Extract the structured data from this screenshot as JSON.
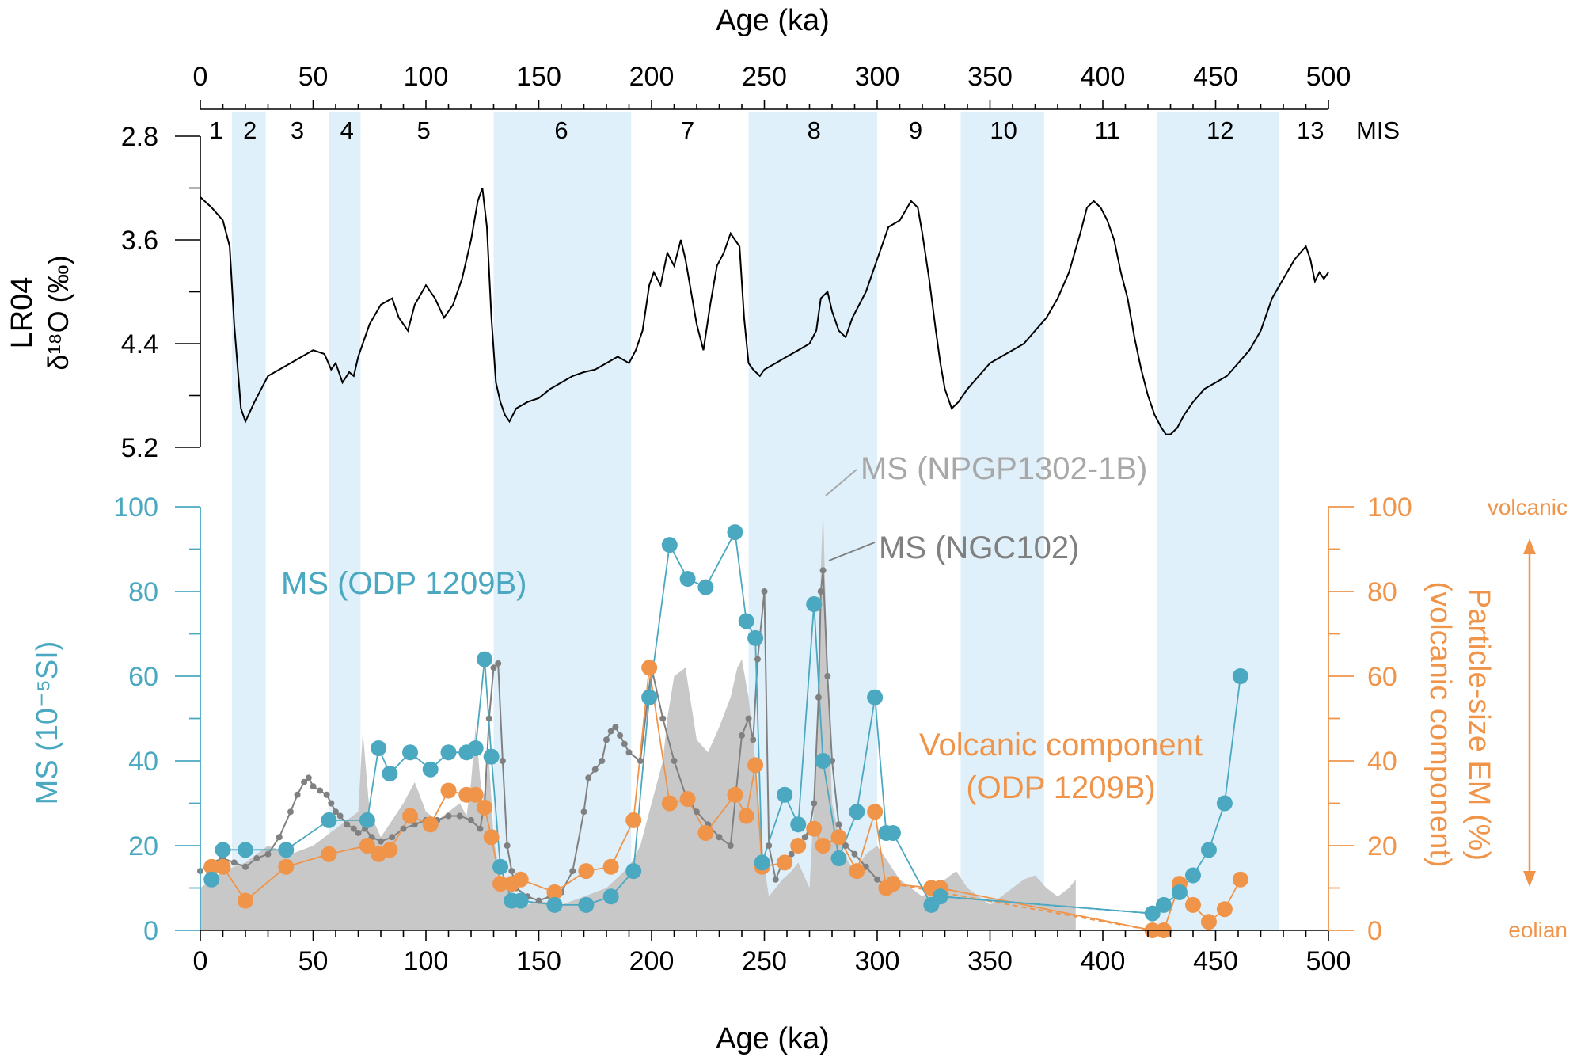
{
  "chart_data": {
    "type": "line",
    "x_label_top": "Age (ka)",
    "x_label_bottom": "Age (ka)",
    "xlim": [
      0,
      500
    ],
    "x_ticks": [
      0,
      50,
      100,
      150,
      200,
      250,
      300,
      350,
      400,
      450,
      500
    ],
    "mis": {
      "label": "MIS",
      "stages": [
        "1",
        "2",
        "3",
        "4",
        "5",
        "6",
        "7",
        "8",
        "9",
        "10",
        "11",
        "12",
        "13"
      ],
      "stage_centers": [
        7,
        22,
        43,
        65,
        99,
        160,
        216,
        272,
        317,
        356,
        402,
        452,
        492
      ],
      "shaded_intervals": [
        [
          14,
          29
        ],
        [
          57,
          71
        ],
        [
          130,
          191
        ],
        [
          243,
          300
        ],
        [
          337,
          374
        ],
        [
          424,
          478
        ]
      ]
    },
    "top_panel": {
      "ylabel_line1": "LR04",
      "ylabel_line2": "δ¹⁸O (‰)",
      "ylim": [
        2.8,
        5.2
      ],
      "y_ticks": [
        "2.8",
        "3.6",
        "4.4",
        "5.2"
      ],
      "series": [
        {
          "name": "LR04 δ18O",
          "color": "#000000",
          "x": [
            0,
            5,
            10,
            13,
            15,
            18,
            20,
            24,
            27,
            30,
            35,
            40,
            45,
            50,
            55,
            58,
            60,
            63,
            66,
            68,
            70,
            72,
            75,
            80,
            85,
            88,
            92,
            95,
            100,
            104,
            108,
            112,
            116,
            120,
            123,
            125,
            127,
            129,
            131,
            133,
            135,
            137,
            140,
            145,
            150,
            155,
            160,
            165,
            170,
            175,
            180,
            185,
            190,
            193,
            196,
            199,
            201,
            204,
            207,
            210,
            213,
            215,
            217,
            220,
            223,
            226,
            229,
            232,
            235,
            237,
            239,
            241,
            243,
            245,
            248,
            250,
            255,
            260,
            265,
            270,
            273,
            275,
            278,
            280,
            283,
            286,
            289,
            292,
            295,
            300,
            305,
            310,
            315,
            318,
            320,
            323,
            326,
            328,
            330,
            333,
            336,
            340,
            345,
            350,
            355,
            360,
            365,
            370,
            375,
            380,
            385,
            390,
            393,
            396,
            399,
            402,
            405,
            408,
            411,
            414,
            417,
            420,
            423,
            426,
            428,
            430,
            433,
            436,
            440,
            445,
            450,
            455,
            460,
            465,
            470,
            475,
            480,
            485,
            490,
            492,
            494,
            496,
            498,
            500
          ],
          "y": [
            3.27,
            3.35,
            3.45,
            3.65,
            4.25,
            4.9,
            5.0,
            4.85,
            4.75,
            4.65,
            4.6,
            4.55,
            4.5,
            4.45,
            4.48,
            4.6,
            4.55,
            4.7,
            4.62,
            4.65,
            4.5,
            4.4,
            4.25,
            4.1,
            4.05,
            4.2,
            4.3,
            4.1,
            3.95,
            4.05,
            4.2,
            4.1,
            3.9,
            3.6,
            3.3,
            3.2,
            3.5,
            4.2,
            4.7,
            4.85,
            4.95,
            5.0,
            4.9,
            4.85,
            4.82,
            4.75,
            4.7,
            4.65,
            4.62,
            4.6,
            4.55,
            4.5,
            4.55,
            4.45,
            4.3,
            3.95,
            3.85,
            3.95,
            3.7,
            3.8,
            3.6,
            3.75,
            3.95,
            4.25,
            4.45,
            4.1,
            3.8,
            3.7,
            3.55,
            3.6,
            3.65,
            4.2,
            4.55,
            4.6,
            4.65,
            4.6,
            4.55,
            4.5,
            4.45,
            4.4,
            4.3,
            4.05,
            4.0,
            4.15,
            4.3,
            4.35,
            4.2,
            4.1,
            4.0,
            3.75,
            3.5,
            3.45,
            3.3,
            3.35,
            3.55,
            3.9,
            4.3,
            4.55,
            4.75,
            4.9,
            4.85,
            4.75,
            4.65,
            4.55,
            4.5,
            4.45,
            4.4,
            4.3,
            4.2,
            4.05,
            3.85,
            3.55,
            3.35,
            3.3,
            3.35,
            3.45,
            3.6,
            3.85,
            4.05,
            4.35,
            4.6,
            4.8,
            4.95,
            5.05,
            5.1,
            5.1,
            5.05,
            4.95,
            4.85,
            4.75,
            4.7,
            4.65,
            4.55,
            4.45,
            4.3,
            4.05,
            3.9,
            3.75,
            3.65,
            3.75,
            3.92,
            3.85,
            3.9,
            3.85
          ]
        }
      ]
    },
    "bottom_panel": {
      "ylabel_left": "MS (10⁻⁵SI)",
      "ylabel_right_line1": "Particle-size EM (%)",
      "ylabel_right_line2": "(volcanic component)",
      "ylim_left": [
        0,
        100
      ],
      "ylim_right": [
        0,
        100
      ],
      "y_ticks_left": [
        "0",
        "20",
        "40",
        "60",
        "80",
        "100"
      ],
      "y_ticks_right": [
        "0",
        "20",
        "40",
        "60",
        "80",
        "100"
      ],
      "arrow_top_label": "volcanic",
      "arrow_bottom_label": "eolian",
      "annotations": {
        "npgp": "MS (NPGP1302-1B)",
        "ngc": "MS (NGC102)",
        "odp_ms": "MS (ODP 1209B)",
        "volcanic_line1": "Volcanic component",
        "volcanic_line2": "(ODP 1209B)"
      },
      "series": [
        {
          "name": "MS (NPGP1302-1B)",
          "type": "area",
          "color": "#c8c8c8",
          "x": [
            0,
            10,
            20,
            30,
            40,
            50,
            60,
            70,
            72,
            75,
            80,
            85,
            90,
            95,
            100,
            105,
            110,
            115,
            118,
            120,
            122,
            125,
            128,
            130,
            133,
            136,
            140,
            145,
            150,
            160,
            170,
            180,
            190,
            195,
            200,
            205,
            207,
            210,
            215,
            220,
            225,
            230,
            235,
            238,
            240,
            243,
            246,
            250,
            252,
            255,
            258,
            262,
            265,
            270,
            272,
            274,
            275,
            276,
            278,
            280,
            285,
            290,
            295,
            300,
            305,
            310,
            315,
            320,
            325,
            330,
            335,
            340,
            345,
            350,
            355,
            360,
            365,
            370,
            375,
            380,
            385,
            388
          ],
          "y": [
            10,
            14,
            16,
            20,
            18,
            20,
            24,
            28,
            47,
            28,
            22,
            26,
            30,
            35,
            28,
            26,
            28,
            30,
            27,
            35,
            48,
            30,
            40,
            22,
            12,
            10,
            8,
            6,
            7,
            6,
            8,
            10,
            15,
            20,
            30,
            40,
            50,
            60,
            62,
            45,
            42,
            48,
            55,
            62,
            64,
            55,
            40,
            15,
            8,
            10,
            12,
            14,
            16,
            10,
            30,
            50,
            85,
            100,
            60,
            30,
            18,
            14,
            18,
            20,
            16,
            12,
            10,
            8,
            10,
            12,
            14,
            10,
            8,
            6,
            8,
            10,
            12,
            13,
            10,
            8,
            10,
            12
          ]
        },
        {
          "name": "MS (NGC102)",
          "type": "line",
          "color": "#808080",
          "x": [
            0,
            5,
            10,
            15,
            20,
            25,
            30,
            35,
            40,
            43,
            46,
            48,
            50,
            53,
            56,
            58,
            60,
            62,
            65,
            68,
            70,
            73,
            76,
            80,
            85,
            90,
            95,
            100,
            105,
            110,
            115,
            120,
            124,
            126,
            128,
            130,
            132,
            134,
            136,
            138,
            140,
            145,
            150,
            155,
            160,
            165,
            170,
            172,
            175,
            178,
            180,
            182,
            184,
            186,
            188,
            190,
            195,
            200,
            205,
            210,
            215,
            220,
            225,
            230,
            235,
            240,
            243,
            245,
            247,
            250,
            252,
            255,
            258,
            262,
            265,
            268,
            270,
            272,
            274,
            275,
            276,
            278,
            280,
            283,
            286,
            290,
            295,
            300,
            305
          ],
          "y": [
            14,
            16,
            17,
            16,
            15,
            17,
            18,
            22,
            28,
            32,
            35,
            36,
            34,
            33,
            32,
            30,
            28,
            27,
            25,
            24,
            23,
            24,
            22,
            21,
            22,
            24,
            25,
            26,
            26,
            27,
            27,
            26,
            24,
            30,
            50,
            62,
            63,
            40,
            20,
            14,
            10,
            8,
            7,
            8,
            9,
            14,
            28,
            36,
            38,
            40,
            45,
            47,
            48,
            46,
            44,
            42,
            40,
            62,
            50,
            40,
            32,
            28,
            25,
            22,
            20,
            46,
            50,
            45,
            64,
            80,
            20,
            12,
            16,
            18,
            20,
            22,
            24,
            30,
            55,
            80,
            85,
            60,
            40,
            25,
            20,
            18,
            15,
            12,
            10
          ]
        },
        {
          "name": "MS (ODP 1209B)",
          "type": "line-markers",
          "color": "#4aa8c0",
          "x": [
            5,
            10,
            20,
            38,
            57,
            74,
            79,
            84,
            93,
            102,
            110,
            118,
            122,
            126,
            129,
            133,
            138,
            142,
            157,
            171,
            182,
            192,
            199,
            208,
            216,
            224,
            237,
            242,
            246,
            249,
            259,
            265,
            272,
            276,
            283,
            291,
            299,
            304,
            307,
            324,
            328,
            422,
            427,
            434,
            440,
            447,
            454,
            461
          ],
          "y": [
            12,
            19,
            19,
            19,
            26,
            26,
            43,
            37,
            42,
            38,
            42,
            42,
            43,
            64,
            41,
            15,
            7,
            7,
            6,
            6,
            8,
            14,
            55,
            91,
            83,
            81,
            94,
            73,
            69,
            16,
            32,
            25,
            77,
            40,
            17,
            28,
            55,
            23,
            23,
            6,
            8,
            4,
            6,
            9,
            13,
            19,
            30,
            60
          ]
        },
        {
          "name": "Volcanic component (ODP 1209B)",
          "type": "line-markers",
          "color": "#f0944a",
          "x": [
            5,
            10,
            20,
            38,
            57,
            74,
            79,
            84,
            93,
            102,
            110,
            118,
            122,
            126,
            129,
            133,
            138,
            142,
            157,
            171,
            182,
            192,
            199,
            208,
            216,
            224,
            237,
            242,
            246,
            249,
            259,
            265,
            272,
            276,
            283,
            291,
            299,
            304,
            307,
            324,
            328,
            422,
            427,
            434,
            440,
            447,
            454,
            461
          ],
          "y": [
            15,
            15,
            7,
            15,
            18,
            20,
            18,
            19,
            27,
            25,
            33,
            32,
            32,
            29,
            22,
            11,
            11,
            12,
            9,
            14,
            15,
            26,
            62,
            30,
            31,
            23,
            32,
            27,
            39,
            15,
            16,
            20,
            24,
            20,
            22,
            14,
            28,
            10,
            11,
            10,
            10,
            0,
            0,
            11,
            6,
            2,
            5,
            12
          ]
        },
        {
          "name": "ODP MS dashed connector",
          "type": "dashed",
          "color": "#4aa8c0",
          "x": [
            328,
            422
          ],
          "y": [
            8,
            4
          ]
        },
        {
          "name": "Volcanic dashed connector",
          "type": "dashed",
          "color": "#f0944a",
          "x": [
            307,
            422
          ],
          "y": [
            11,
            0
          ]
        }
      ]
    }
  }
}
